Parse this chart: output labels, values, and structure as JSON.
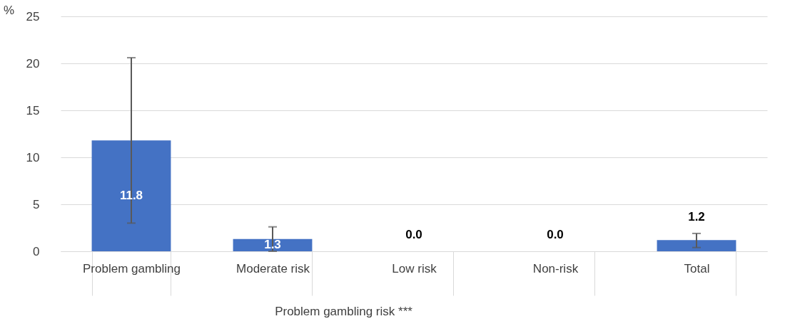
{
  "chart_data": {
    "type": "bar",
    "ylabel": "%",
    "xlabel": "Problem gambling risk ***",
    "categories": [
      "Problem gambling",
      "Moderate risk",
      "Low risk",
      "Non-risk",
      "Total"
    ],
    "values": [
      11.8,
      1.3,
      0.0,
      0.0,
      1.2
    ],
    "errors": [
      [
        3.0,
        20.6
      ],
      [
        0.0,
        2.6
      ],
      null,
      null,
      [
        0.4,
        1.9
      ]
    ],
    "value_labels": [
      "11.8",
      "1.3",
      "0.0",
      "0.0",
      "1.2"
    ],
    "color": "#4472c4",
    "ylim": [
      0,
      25
    ],
    "yticks": [
      0,
      5,
      10,
      15,
      20,
      25
    ],
    "grid": "y"
  }
}
